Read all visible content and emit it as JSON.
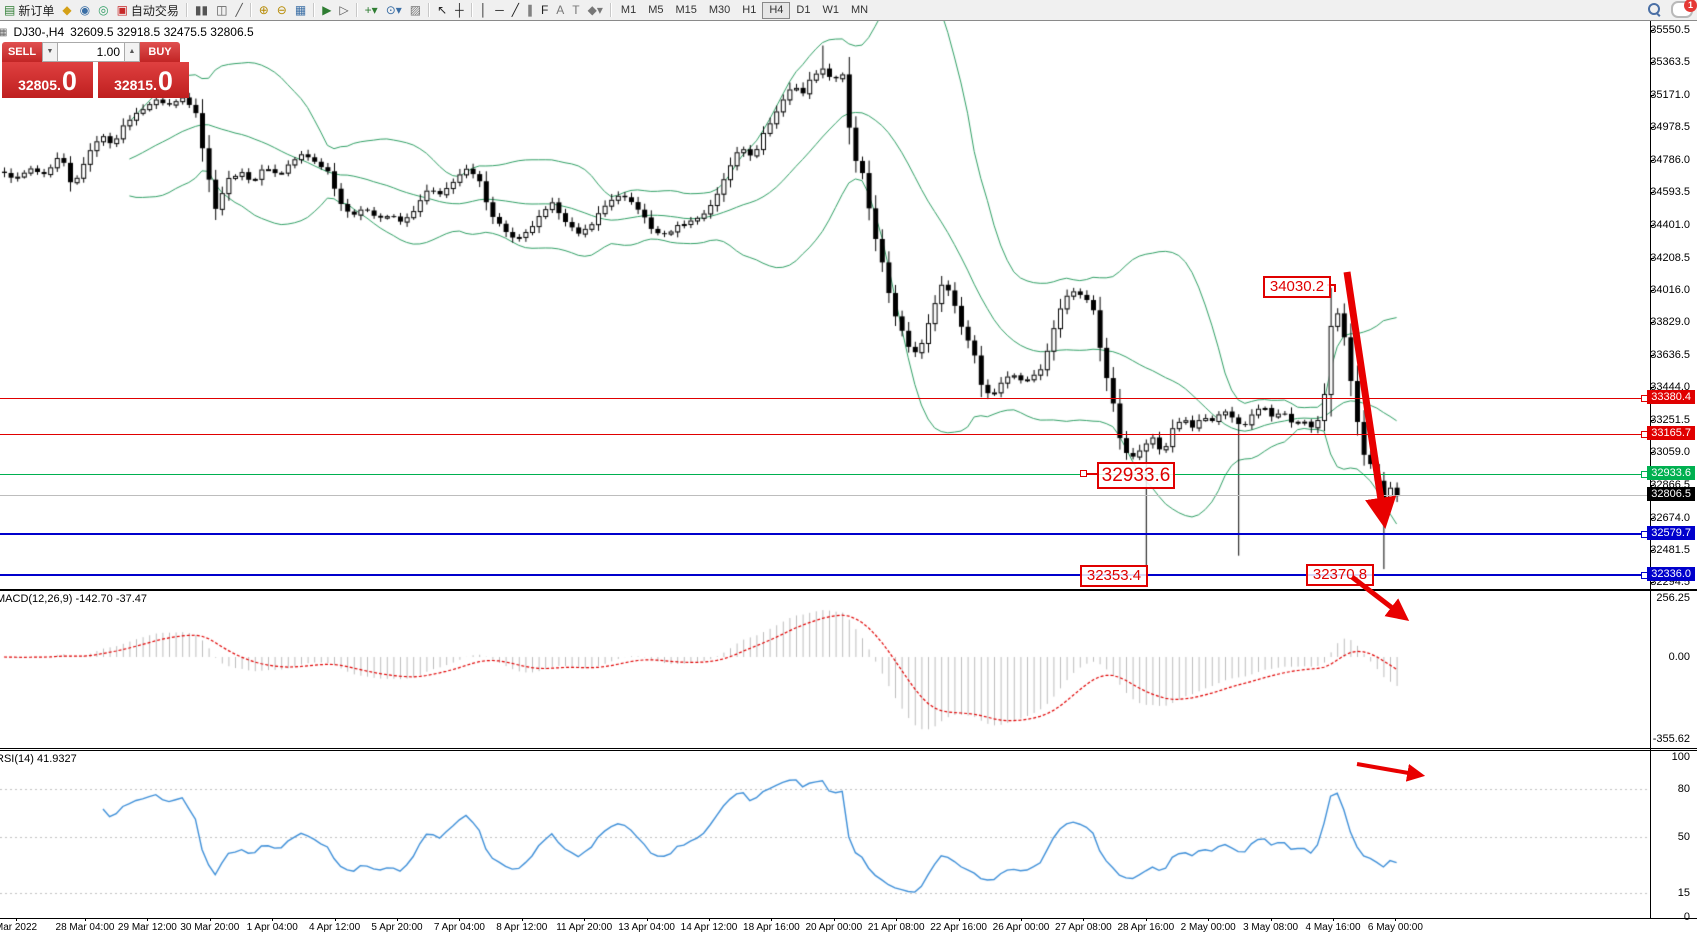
{
  "window": {
    "search_tooltip": "search",
    "alert_badge": "1"
  },
  "toolbar": {
    "items": [
      {
        "t": "btn",
        "name": "new-order-button",
        "glyph": "▤",
        "color": "#2e7d32",
        "label": "新订单"
      },
      {
        "t": "icon",
        "name": "market-watch-icon",
        "glyph": "◆",
        "color": "#d4a017"
      },
      {
        "t": "icon",
        "name": "profile-icon",
        "glyph": "◉",
        "color": "#3a6ea5"
      },
      {
        "t": "icon",
        "name": "signals-icon",
        "glyph": "◎",
        "color": "#2e9e63"
      },
      {
        "t": "btn",
        "name": "auto-trading-button",
        "glyph": "▣",
        "color": "#c62828",
        "label": "自动交易"
      },
      {
        "t": "sep"
      },
      {
        "t": "icon",
        "name": "bar-chart-icon",
        "glyph": "▮▮",
        "color": "#555"
      },
      {
        "t": "icon",
        "name": "candle-chart-icon",
        "glyph": "◫",
        "color": "#555"
      },
      {
        "t": "icon",
        "name": "line-chart-icon",
        "glyph": "╱",
        "color": "#555"
      },
      {
        "t": "sep"
      },
      {
        "t": "icon",
        "name": "zoom-in-icon",
        "glyph": "⊕",
        "color": "#b58900"
      },
      {
        "t": "icon",
        "name": "zoom-out-icon",
        "glyph": "⊖",
        "color": "#b58900"
      },
      {
        "t": "icon",
        "name": "tile-windows-icon",
        "glyph": "▦",
        "color": "#3a6ea5"
      },
      {
        "t": "sep"
      },
      {
        "t": "icon",
        "name": "auto-scroll-icon",
        "glyph": "▶",
        "color": "#2e7d32"
      },
      {
        "t": "icon",
        "name": "chart-shift-icon",
        "glyph": "▷",
        "color": "#555"
      },
      {
        "t": "sep"
      },
      {
        "t": "icon",
        "name": "indicators-icon",
        "glyph": "+▾",
        "color": "#2e7d32"
      },
      {
        "t": "icon",
        "name": "periods-icon",
        "glyph": "⊙▾",
        "color": "#3a6ea5"
      },
      {
        "t": "icon",
        "name": "templates-icon",
        "glyph": "▨",
        "color": "#777"
      },
      {
        "t": "sep"
      },
      {
        "t": "icon",
        "name": "cursor-icon",
        "glyph": "↖",
        "color": "#222"
      },
      {
        "t": "icon",
        "name": "crosshair-icon",
        "glyph": "┼",
        "color": "#222"
      },
      {
        "t": "sep"
      },
      {
        "t": "icon",
        "name": "vertical-line-icon",
        "glyph": "│",
        "color": "#222"
      },
      {
        "t": "icon",
        "name": "horizontal-line-icon",
        "glyph": "─",
        "color": "#222"
      },
      {
        "t": "icon",
        "name": "trendline-icon",
        "glyph": "╱",
        "color": "#222"
      },
      {
        "t": "icon",
        "name": "channel-icon",
        "glyph": "∥",
        "color": "#222"
      },
      {
        "t": "icon",
        "name": "fibonacci-icon",
        "glyph": "F",
        "color": "#222"
      },
      {
        "t": "icon",
        "name": "text-icon",
        "glyph": "A",
        "color": "#777"
      },
      {
        "t": "icon",
        "name": "label-icon",
        "glyph": "T",
        "color": "#777"
      },
      {
        "t": "icon",
        "name": "shapes-icon",
        "glyph": "◆▾",
        "color": "#777"
      }
    ],
    "timeframes": [
      "M1",
      "M5",
      "M15",
      "M30",
      "H1",
      "H4",
      "D1",
      "W1",
      "MN"
    ],
    "active_timeframe": "H4"
  },
  "chart_header": {
    "symbol_period": "DJ30-,H4",
    "ohlc": "32609.5 32918.5 32475.5 32806.5"
  },
  "one_click": {
    "sell_label": "SELL",
    "buy_label": "BUY",
    "volume": "1.00",
    "sell_price": "32805",
    "sell_price_big": "0",
    "buy_price": "32815",
    "buy_price_big": "0"
  },
  "price_axis": {
    "ticks": [
      "35550.5",
      "35363.5",
      "35171.0",
      "34978.5",
      "34786.0",
      "34593.5",
      "34401.0",
      "34208.5",
      "34016.0",
      "33829.0",
      "33636.5",
      "33444.0",
      "33251.5",
      "33059.0",
      "32866.5",
      "32674.0",
      "32481.5",
      "32294.5"
    ]
  },
  "price_lines": [
    {
      "price": 33380.4,
      "label": "33380.4",
      "line_color": "#e00000",
      "badge_color": "#e00000",
      "thickness": 1
    },
    {
      "price": 33165.7,
      "label": "33165.7",
      "line_color": "#e00000",
      "badge_color": "#e00000",
      "thickness": 1
    },
    {
      "price": 32933.6,
      "label": "32933.6",
      "line_color": "#00b050",
      "badge_color": "#00b050",
      "thickness": 1
    },
    {
      "price": 32806.5,
      "label": "32806.5",
      "line_color": "#bdbdbd",
      "badge_color": "#000000",
      "thickness": 1,
      "current": true
    },
    {
      "price": 32579.7,
      "label": "32579.7",
      "line_color": "#0000cc",
      "badge_color": "#0000cc",
      "thickness": 2
    },
    {
      "price": 32336.0,
      "label": "32336.0",
      "line_color": "#0000cc",
      "badge_color": "#0000cc",
      "thickness": 2
    }
  ],
  "annotations": {
    "labels": [
      {
        "text": "34030.2"
      },
      {
        "text": "32933.6"
      },
      {
        "text": "32353.4"
      },
      {
        "text": "32370.8"
      }
    ],
    "arrow_color": "#e80000"
  },
  "macd": {
    "label": "MACD(12,26,9) -142.70 -37.47",
    "axis": [
      "256.25",
      "0.00",
      "-355.62"
    ]
  },
  "rsi": {
    "label": "RSI(14) 41.9327",
    "axis": [
      "100",
      "80",
      "50",
      "15",
      "0"
    ],
    "dashed_levels": [
      80,
      50,
      15
    ]
  },
  "time_axis": [
    "Mar 2022",
    "28 Mar 04:00",
    "29 Mar 12:00",
    "30 Mar 20:00",
    "1 Apr 04:00",
    "4 Apr 12:00",
    "5 Apr 20:00",
    "7 Apr 04:00",
    "8 Apr 12:00",
    "11 Apr 20:00",
    "13 Apr 04:00",
    "14 Apr 12:00",
    "18 Apr 16:00",
    "20 Apr 00:00",
    "21 Apr 08:00",
    "22 Apr 16:00",
    "26 Apr 00:00",
    "27 Apr 08:00",
    "28 Apr 16:00",
    "2 May 00:00",
    "3 May 08:00",
    "4 May 16:00",
    "6 May 00:00"
  ],
  "chart_data": {
    "type": "candlestick",
    "symbol": "DJ30-",
    "period": "H4",
    "indicators": [
      "Bollinger Bands (green)",
      "MACD(12,26,9)",
      "RSI(14)"
    ],
    "y_axis_range": [
      32294.5,
      35550.5
    ],
    "close_anchors": [
      [
        0,
        34714
      ],
      [
        15,
        34674
      ],
      [
        30,
        34732
      ],
      [
        45,
        34691
      ],
      [
        60,
        34819
      ],
      [
        72,
        34616
      ],
      [
        85,
        34790
      ],
      [
        100,
        34935
      ],
      [
        112,
        34877
      ],
      [
        125,
        35004
      ],
      [
        140,
        35080
      ],
      [
        155,
        35138
      ],
      [
        170,
        35109
      ],
      [
        182,
        35155
      ],
      [
        195,
        35080
      ],
      [
        205,
        34761
      ],
      [
        215,
        34500
      ],
      [
        228,
        34674
      ],
      [
        240,
        34714
      ],
      [
        252,
        34656
      ],
      [
        265,
        34749
      ],
      [
        278,
        34691
      ],
      [
        290,
        34772
      ],
      [
        302,
        34819
      ],
      [
        315,
        34772
      ],
      [
        328,
        34714
      ],
      [
        340,
        34529
      ],
      [
        352,
        34459
      ],
      [
        365,
        34500
      ],
      [
        378,
        34442
      ],
      [
        390,
        34459
      ],
      [
        402,
        34413
      ],
      [
        415,
        34500
      ],
      [
        428,
        34616
      ],
      [
        440,
        34575
      ],
      [
        452,
        34656
      ],
      [
        465,
        34732
      ],
      [
        478,
        34674
      ],
      [
        490,
        34471
      ],
      [
        502,
        34384
      ],
      [
        515,
        34308
      ],
      [
        528,
        34366
      ],
      [
        540,
        34459
      ],
      [
        552,
        34529
      ],
      [
        565,
        34425
      ],
      [
        578,
        34343
      ],
      [
        590,
        34401
      ],
      [
        602,
        34500
      ],
      [
        615,
        34575
      ],
      [
        628,
        34552
      ],
      [
        640,
        34482
      ],
      [
        652,
        34366
      ],
      [
        665,
        34343
      ],
      [
        678,
        34401
      ],
      [
        690,
        34425
      ],
      [
        702,
        34459
      ],
      [
        715,
        34558
      ],
      [
        728,
        34732
      ],
      [
        740,
        34877
      ],
      [
        752,
        34790
      ],
      [
        762,
        34935
      ],
      [
        772,
        35022
      ],
      [
        782,
        35138
      ],
      [
        792,
        35225
      ],
      [
        802,
        35178
      ],
      [
        812,
        35283
      ],
      [
        822,
        35329
      ],
      [
        832,
        35254
      ],
      [
        842,
        35294
      ],
      [
        852,
        34819
      ],
      [
        862,
        34703
      ],
      [
        872,
        34384
      ],
      [
        882,
        34181
      ],
      [
        892,
        33891
      ],
      [
        902,
        33775
      ],
      [
        912,
        33630
      ],
      [
        922,
        33717
      ],
      [
        932,
        33891
      ],
      [
        942,
        34065
      ],
      [
        952,
        33978
      ],
      [
        962,
        33775
      ],
      [
        972,
        33688
      ],
      [
        982,
        33427
      ],
      [
        992,
        33398
      ],
      [
        1002,
        33485
      ],
      [
        1012,
        33531
      ],
      [
        1022,
        33473
      ],
      [
        1032,
        33514
      ],
      [
        1042,
        33554
      ],
      [
        1052,
        33775
      ],
      [
        1062,
        33949
      ],
      [
        1072,
        34018
      ],
      [
        1082,
        33978
      ],
      [
        1092,
        33937
      ],
      [
        1102,
        33601
      ],
      [
        1112,
        33369
      ],
      [
        1122,
        33067
      ],
      [
        1132,
        33032
      ],
      [
        1142,
        33090
      ],
      [
        1152,
        33148
      ],
      [
        1162,
        33050
      ],
      [
        1172,
        33195
      ],
      [
        1182,
        33264
      ],
      [
        1192,
        33206
      ],
      [
        1202,
        33282
      ],
      [
        1212,
        33241
      ],
      [
        1222,
        33311
      ],
      [
        1232,
        33264
      ],
      [
        1242,
        33206
      ],
      [
        1252,
        33282
      ],
      [
        1262,
        33340
      ],
      [
        1272,
        33264
      ],
      [
        1282,
        33299
      ],
      [
        1292,
        33223
      ],
      [
        1302,
        33253
      ],
      [
        1312,
        33206
      ],
      [
        1322,
        33282
      ],
      [
        1333,
        33950
      ],
      [
        1343,
        33775
      ],
      [
        1353,
        33369
      ],
      [
        1363,
        33050
      ],
      [
        1373,
        32963
      ],
      [
        1383,
        32760
      ],
      [
        1390,
        32847
      ],
      [
        1396,
        32806.5
      ]
    ],
    "high_overrides": [
      [
        822,
        35460
      ],
      [
        1333,
        34030.2
      ]
    ],
    "low_overrides": [
      [
        1147,
        32353.4
      ],
      [
        1240,
        32450
      ],
      [
        1383,
        32370.8
      ]
    ]
  }
}
